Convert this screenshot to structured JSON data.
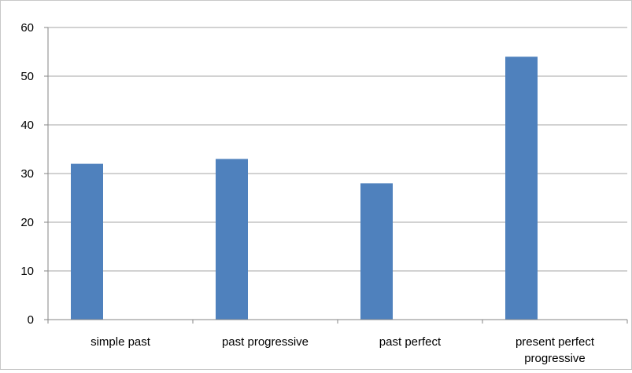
{
  "chart_data": {
    "type": "bar",
    "title": "",
    "xlabel": "",
    "ylabel": "",
    "categories": [
      "simple past",
      "past progressive",
      "past perfect",
      "present perfect progressive"
    ],
    "category_lines": [
      [
        "simple past"
      ],
      [
        "past progressive"
      ],
      [
        "past perfect"
      ],
      [
        "present perfect",
        "progressive"
      ]
    ],
    "values": [
      32,
      33,
      28,
      54
    ],
    "ylim": [
      0,
      60
    ],
    "yticks": [
      "0",
      "10",
      "20",
      "30",
      "40",
      "50",
      "60"
    ],
    "grid": true,
    "legend": "none",
    "bar_color": "#4f81bd",
    "grid_color": "#a6a6a6"
  }
}
